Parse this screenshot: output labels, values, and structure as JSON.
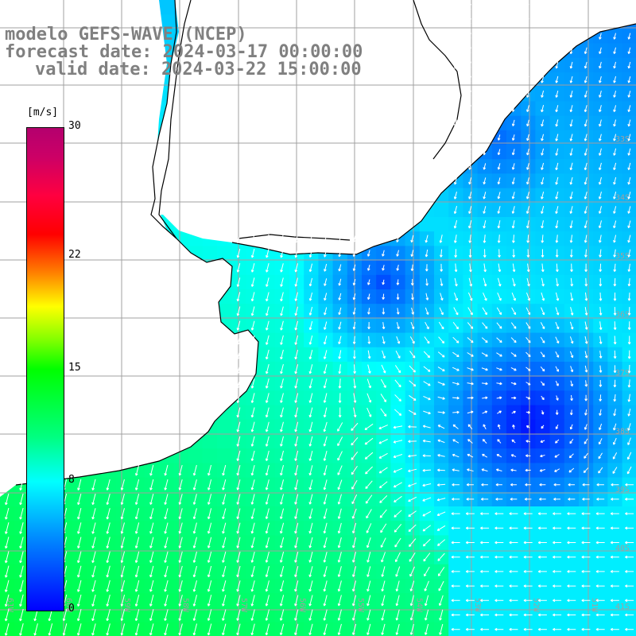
{
  "header": {
    "model": "modelo GEFS-WAVE (NCEP)",
    "forecast": "forecast date: 2024-03-17 00:00:00",
    "valid": "valid date: 2024-03-22 15:00:00"
  },
  "colorbar": {
    "unit": "[m/s]",
    "min": 0,
    "max": 30,
    "ticks": [
      {
        "label": "30",
        "value": 30
      },
      {
        "label": "22",
        "value": 22
      },
      {
        "label": "15",
        "value": 15
      },
      {
        "label": "8",
        "value": 8
      },
      {
        "label": "0",
        "value": 0
      }
    ]
  },
  "grid": {
    "lon_labels": [
      "61W",
      "60W",
      "59W",
      "58W",
      "57W",
      "56W",
      "55W",
      "54W",
      "53W",
      "52W",
      "51W"
    ],
    "lat_labels": [
      "33S",
      "34S",
      "35S",
      "36S",
      "37S",
      "38S",
      "39S",
      "40S",
      "41S"
    ]
  },
  "colors": {
    "land": "#ffffff",
    "coastline": "#000000",
    "gridline": "#a0a0a0",
    "arrow": "#ffffff",
    "title": "#808080"
  },
  "map_data": {
    "field": "wind speed with direction arrows",
    "units": "m/s",
    "extent": {
      "lon": [
        -61.0,
        -50.2
      ],
      "lat": [
        -41.3,
        -30.0
      ]
    },
    "wind_centers": [
      {
        "lon": -52.0,
        "lat": -37.5,
        "speed": 0.5
      },
      {
        "lon": -54.5,
        "lat": -35.0,
        "speed": 2.5
      },
      {
        "lon": -52.5,
        "lat": -32.5,
        "speed": 3.5
      }
    ]
  }
}
